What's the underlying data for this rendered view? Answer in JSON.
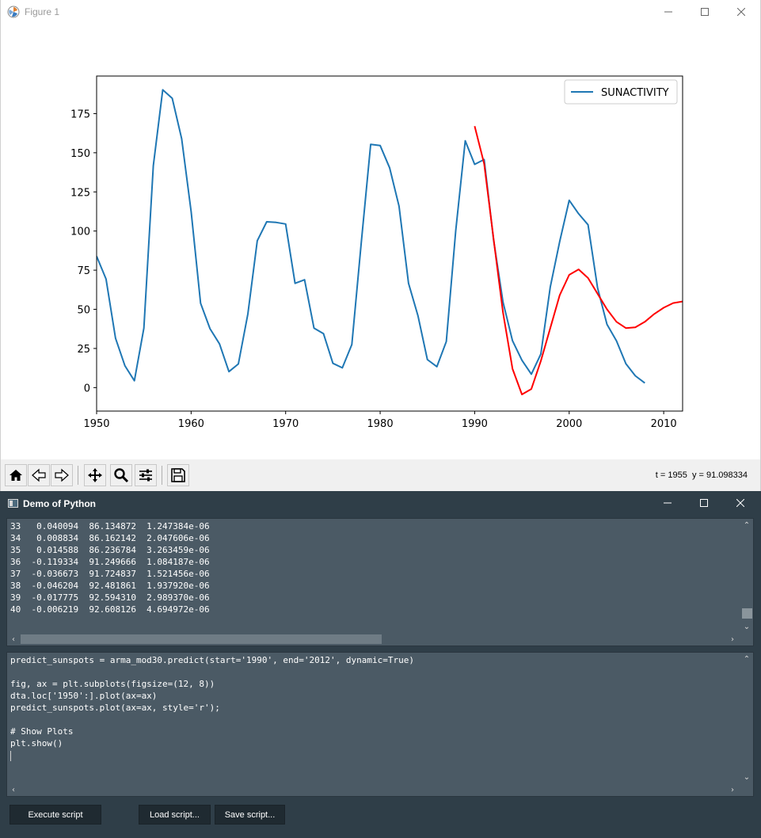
{
  "figure_window": {
    "title": "Figure 1",
    "coord_readout": "t = 1955  y = 91.098334",
    "toolbar_icons": [
      "home-icon",
      "back-arrow-icon",
      "forward-arrow-icon",
      "pan-icon",
      "zoom-icon",
      "configure-subplots-icon",
      "save-icon"
    ]
  },
  "chart_data": {
    "type": "line",
    "title": "",
    "xlabel": "",
    "ylabel": "",
    "xlim": [
      1950,
      2012
    ],
    "ylim": [
      -15,
      199
    ],
    "xticks": [
      1950,
      1960,
      1970,
      1980,
      1990,
      2000,
      2010
    ],
    "yticks": [
      0,
      25,
      50,
      75,
      100,
      125,
      150,
      175
    ],
    "grid": false,
    "legend_position": "top-right",
    "series": [
      {
        "name": "SUNACTIVITY",
        "color": "#1f77b4",
        "x": [
          1950,
          1951,
          1952,
          1953,
          1954,
          1955,
          1956,
          1957,
          1958,
          1959,
          1960,
          1961,
          1962,
          1963,
          1964,
          1965,
          1966,
          1967,
          1968,
          1969,
          1970,
          1971,
          1972,
          1973,
          1974,
          1975,
          1976,
          1977,
          1978,
          1979,
          1980,
          1981,
          1982,
          1983,
          1984,
          1985,
          1986,
          1987,
          1988,
          1989,
          1990,
          1991,
          1992,
          1993,
          1994,
          1995,
          1996,
          1997,
          1998,
          1999,
          2000,
          2001,
          2002,
          2003,
          2004,
          2005,
          2006,
          2007,
          2008
        ],
        "y": [
          83.9,
          69.4,
          31.5,
          13.9,
          4.4,
          38.0,
          141.7,
          190.2,
          184.8,
          159.0,
          112.3,
          53.9,
          37.6,
          27.9,
          10.2,
          15.1,
          47.0,
          93.8,
          105.9,
          105.5,
          104.5,
          66.6,
          68.9,
          38.0,
          34.5,
          15.5,
          12.6,
          27.5,
          92.5,
          155.4,
          154.6,
          140.4,
          115.9,
          66.6,
          45.9,
          17.9,
          13.4,
          29.4,
          100.2,
          157.6,
          142.6,
          145.7,
          94.3,
          54.6,
          29.9,
          17.5,
          8.6,
          21.5,
          64.3,
          93.3,
          119.6,
          111.0,
          104.0,
          63.7,
          40.4,
          29.8,
          15.2,
          7.5,
          2.9
        ]
      },
      {
        "color": "#ff0000",
        "x": [
          1990,
          1991,
          1992,
          1993,
          1994,
          1995,
          1996,
          1997,
          1998,
          1999,
          2000,
          2001,
          2002,
          2003,
          2004,
          2005,
          2006,
          2007,
          2008,
          2009,
          2010,
          2011,
          2012
        ],
        "y": [
          167.0,
          143.0,
          95.0,
          48.0,
          12.0,
          -4.4,
          -0.9,
          17.0,
          38.0,
          59.0,
          72.0,
          75.5,
          70.0,
          60.0,
          50.0,
          42.0,
          38.0,
          38.5,
          42.0,
          47.0,
          51.0,
          54.0,
          55.0
        ]
      }
    ]
  },
  "demo_window": {
    "title": "Demo of Python",
    "output_lines": [
      "33   0.040094  86.134872  1.247384e-06",
      "34   0.008834  86.162142  2.047606e-06",
      "35   0.014588  86.236784  3.263459e-06",
      "36  -0.119334  91.249666  1.084187e-06",
      "37  -0.036673  91.724837  1.521456e-06",
      "38  -0.046204  92.481861  1.937920e-06",
      "39  -0.017775  92.594310  2.989370e-06",
      "40  -0.006219  92.608126  4.694972e-06"
    ],
    "script_lines": [
      "predict_sunspots = arma_mod30.predict(start='1990', end='2012', dynamic=True)",
      "",
      "fig, ax = plt.subplots(figsize=(12, 8))",
      "dta.loc['1950':].plot(ax=ax)",
      "predict_sunspots.plot(ax=ax, style='r');",
      "",
      "# Show Plots",
      "plt.show()"
    ],
    "execute_label": "Execute script",
    "load_label": "Load script...",
    "save_label": "Save script..."
  }
}
